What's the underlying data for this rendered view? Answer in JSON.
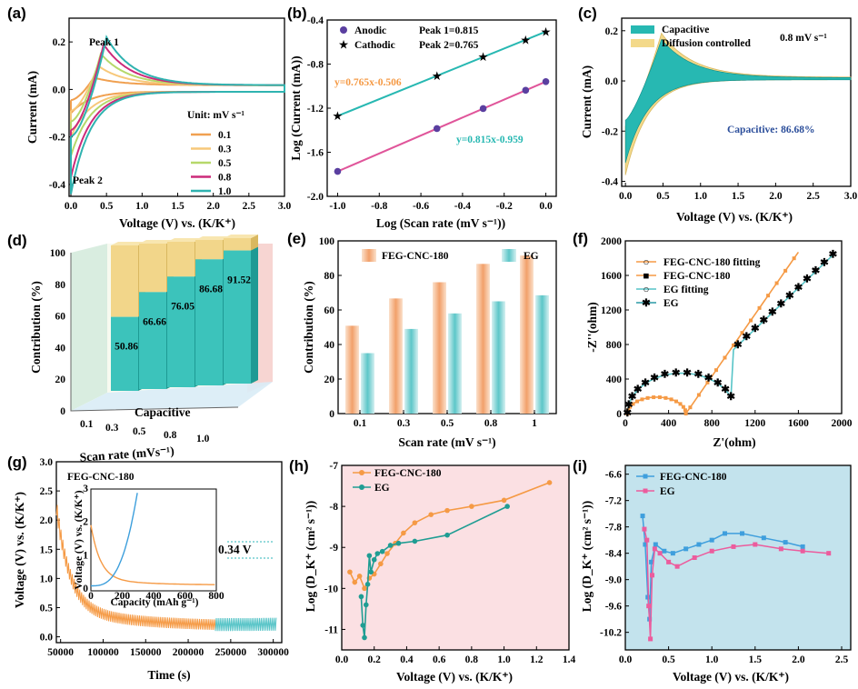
{
  "colors": {
    "c01": "#f0a050",
    "c03": "#f7c87a",
    "c05": "#b6d86a",
    "c08": "#cc2a7a",
    "c10": "#2fb3b0",
    "teal": "#27b8b2",
    "pink": "#e0559a",
    "orange": "#f59a45",
    "lightTeal": "#57c4c7",
    "yellow": "#f3d98a",
    "blue": "#3f9fdd",
    "magenta": "#ec5c9d"
  },
  "chart_data": [
    {
      "id": "a",
      "type": "line",
      "panel_label": "(a)",
      "xlabel": "Voltage (V) vs. (K/K⁺)",
      "ylabel": "Current (mA)",
      "xlim": [
        0,
        3
      ],
      "ylim": [
        -0.45,
        0.3
      ],
      "xticks": [
        "0.0",
        "0.5",
        "1.0",
        "1.5",
        "2.0",
        "2.5",
        "3.0"
      ],
      "yticks": [
        "-0.4",
        "-0.2",
        "0.0",
        "0.2"
      ],
      "legend_title": "Unit: mV s⁻¹",
      "annotations": [
        "Peak 1",
        "Peak 2"
      ],
      "series": [
        {
          "name": "0.1",
          "peak": 0.05,
          "vpeak": 0.32,
          "valley": -0.1
        },
        {
          "name": "0.3",
          "peak": 0.1,
          "vpeak": 0.38,
          "valley": -0.2
        },
        {
          "name": "0.5",
          "peak": 0.15,
          "vpeak": 0.42,
          "valley": -0.28
        },
        {
          "name": "0.8",
          "peak": 0.19,
          "vpeak": 0.46,
          "valley": -0.37
        },
        {
          "name": "1.0",
          "peak": 0.22,
          "vpeak": 0.5,
          "valley": -0.44
        }
      ]
    },
    {
      "id": "b",
      "type": "scatter",
      "panel_label": "(b)",
      "xlabel": "Log (Scan rate (mV s⁻¹))",
      "ylabel": "Log (Current (mA))",
      "xlim": [
        -1,
        0
      ],
      "ylim": [
        -2.0,
        -0.4
      ],
      "xticks": [
        "-1.0",
        "-0.8",
        "-0.6",
        "-0.4",
        "-0.2",
        "0.0"
      ],
      "yticks": [
        "-2.0",
        "-1.6",
        "-1.2",
        "-0.8",
        "-0.4"
      ],
      "legend": [
        "Anodic",
        "Cathodic"
      ],
      "peak_labels": [
        "Peak 1=0.815",
        "Peak 2=0.765"
      ],
      "fit_labels": [
        "y=0.765x-0.506",
        "y=0.815x-0.959"
      ],
      "x": [
        -1,
        -0.523,
        -0.301,
        -0.097,
        0
      ],
      "series": [
        {
          "name": "Anodic",
          "values": [
            -1.774,
            -1.385,
            -1.204,
            -1.038,
            -0.959
          ]
        },
        {
          "name": "Cathodic",
          "values": [
            -1.271,
            -0.906,
            -0.736,
            -0.58,
            -0.506
          ]
        }
      ]
    },
    {
      "id": "c",
      "type": "area",
      "panel_label": "(c)",
      "xlabel": "Voltage (V) vs. (K/K⁺)",
      "ylabel": "Current (mA)",
      "xlim": [
        0,
        3
      ],
      "ylim": [
        -0.42,
        0.25
      ],
      "xticks": [
        "0.0",
        "0.5",
        "1.0",
        "1.5",
        "2.0",
        "2.5",
        "3.0"
      ],
      "yticks": [
        "-0.4",
        "-0.2",
        "0.0",
        "0.2"
      ],
      "legend": [
        "Capacitive",
        "Diffusion controlled"
      ],
      "rate_label": "0.8 mV s⁻¹",
      "annotation": "Capacitive: 86.68%"
    },
    {
      "id": "d",
      "type": "bar",
      "panel_label": "(d)",
      "xlabel": "Scan rate (mVs⁻¹)",
      "ylabel": "Contribution (%)",
      "floor_label": "Capacitive",
      "categories": [
        "0.1",
        "0.3",
        "0.5",
        "0.8",
        "1.0"
      ],
      "values": [
        50.86,
        66.66,
        76.05,
        86.68,
        91.52
      ],
      "value_labels": [
        "50.86",
        "66.66",
        "76.05",
        "86.68",
        "91.52"
      ],
      "yticks": [
        "0",
        "20",
        "40",
        "60",
        "80",
        "100"
      ]
    },
    {
      "id": "e",
      "type": "bar",
      "panel_label": "(e)",
      "xlabel": "Scan rate (mV s⁻¹)",
      "ylabel": "Contribution (%)",
      "ylim": [
        0,
        100
      ],
      "categories": [
        "0.1",
        "0.3",
        "0.5",
        "0.8",
        "1"
      ],
      "yticks": [
        "0",
        "20",
        "40",
        "60",
        "80",
        "100"
      ],
      "series": [
        {
          "name": "FEG-CNC-180",
          "values": [
            50.86,
            66.66,
            76.05,
            86.68,
            91.52
          ]
        },
        {
          "name": "EG",
          "values": [
            35,
            49,
            58,
            65,
            68.5
          ]
        }
      ]
    },
    {
      "id": "f",
      "type": "scatter",
      "panel_label": "(f)",
      "xlabel": "Z'(ohm)",
      "ylabel": "-Z''(ohm)",
      "xlim": [
        0,
        2000
      ],
      "ylim": [
        0,
        2000
      ],
      "xticks": [
        "0",
        "400",
        "800",
        "1200",
        "1600",
        "2000"
      ],
      "yticks": [
        "0",
        "400",
        "800",
        "1200",
        "1600",
        "2000"
      ],
      "legend": [
        "FEG-CNC-180 fitting",
        "FEG-CNC-180",
        "EG fitting",
        "EG"
      ]
    },
    {
      "id": "g",
      "type": "line",
      "panel_label": "(g)",
      "xlabel": "Time (s)",
      "ylabel": "Voltage (V) vs. (K/K⁺)",
      "title": "FEG-CNC-180",
      "xlim": [
        45000,
        310000
      ],
      "ylim": [
        -0.1,
        3.0
      ],
      "xticks": [
        "50000",
        "100000",
        "150000",
        "200000",
        "250000",
        "300000"
      ],
      "yticks": [
        "0.0",
        "0.5",
        "1.0",
        "1.5",
        "2.0",
        "2.5",
        "3.0"
      ],
      "annotation": "0.34 V",
      "inset": {
        "xlabel": "Capacity (mAh g⁻¹)",
        "ylabel": "Voltage (V) vs. (K/K⁺)",
        "xticks": [
          "0",
          "200",
          "400",
          "600",
          "800"
        ],
        "yticks": [
          "0",
          "1",
          "2",
          "3"
        ]
      }
    },
    {
      "id": "h",
      "type": "line",
      "panel_label": "(h)",
      "xlabel": "Voltage (V) vs. (K/K⁺)",
      "ylabel": "Log (D_K⁺ (cm² s⁻¹))",
      "xlim": [
        0,
        1.4
      ],
      "ylim": [
        -11.5,
        -7
      ],
      "xticks": [
        "0.0",
        "0.2",
        "0.4",
        "0.6",
        "0.8",
        "1.0",
        "1.2",
        "1.4"
      ],
      "yticks": [
        "-11",
        "-10",
        "-9",
        "-8",
        "-7"
      ],
      "series": [
        {
          "name": "FEG-CNC-180",
          "x": [
            0.05,
            0.08,
            0.11,
            0.14,
            0.17,
            0.2,
            0.24,
            0.28,
            0.33,
            0.38,
            0.45,
            0.55,
            0.65,
            0.8,
            1.0,
            1.28
          ],
          "values": [
            -9.6,
            -9.85,
            -9.7,
            -10.0,
            -9.75,
            -9.65,
            -9.4,
            -9.15,
            -8.9,
            -8.65,
            -8.4,
            -8.2,
            -8.1,
            -8.0,
            -7.85,
            -7.42
          ]
        },
        {
          "name": "EG",
          "x": [
            0.12,
            0.13,
            0.14,
            0.15,
            0.16,
            0.17,
            0.18,
            0.2,
            0.22,
            0.25,
            0.3,
            0.35,
            0.45,
            0.65,
            1.02
          ],
          "values": [
            -10.2,
            -10.9,
            -11.2,
            -10.4,
            -9.9,
            -9.2,
            -9.6,
            -9.3,
            -9.15,
            -9.1,
            -8.95,
            -8.9,
            -8.85,
            -8.7,
            -8.0
          ]
        }
      ]
    },
    {
      "id": "i",
      "type": "line",
      "panel_label": "(i)",
      "xlabel": "Voltage (V) vs. (K/K⁺)",
      "ylabel": "Log (D_K⁺ (cm² s⁻¹))",
      "xlim": [
        0,
        2.5
      ],
      "ylim": [
        -10.6,
        -6.4
      ],
      "xticks": [
        "0.0",
        "0.5",
        "1.0",
        "1.5",
        "2.0",
        "2.5"
      ],
      "yticks": [
        "-6.6",
        "-7.2",
        "-7.8",
        "-8.4",
        "-9.0",
        "-9.6",
        "-10.2"
      ],
      "series": [
        {
          "name": "FEG-CNC-180",
          "x": [
            0.2,
            0.23,
            0.26,
            0.28,
            0.3,
            0.35,
            0.45,
            0.55,
            0.7,
            0.85,
            1.0,
            1.15,
            1.35,
            1.6,
            1.85,
            2.05
          ],
          "values": [
            -7.55,
            -8.2,
            -9.4,
            -9.9,
            -8.6,
            -8.2,
            -8.35,
            -8.4,
            -8.3,
            -8.2,
            -8.1,
            -7.95,
            -7.95,
            -8.05,
            -8.15,
            -8.25
          ]
        },
        {
          "name": "EG",
          "x": [
            0.22,
            0.25,
            0.27,
            0.29,
            0.31,
            0.34,
            0.4,
            0.5,
            0.6,
            0.8,
            1.0,
            1.25,
            1.5,
            1.8,
            2.05,
            2.35
          ],
          "values": [
            -7.85,
            -8.1,
            -9.6,
            -10.35,
            -8.9,
            -8.3,
            -8.4,
            -8.6,
            -8.7,
            -8.5,
            -8.35,
            -8.25,
            -8.2,
            -8.3,
            -8.35,
            -8.4
          ]
        }
      ]
    }
  ]
}
